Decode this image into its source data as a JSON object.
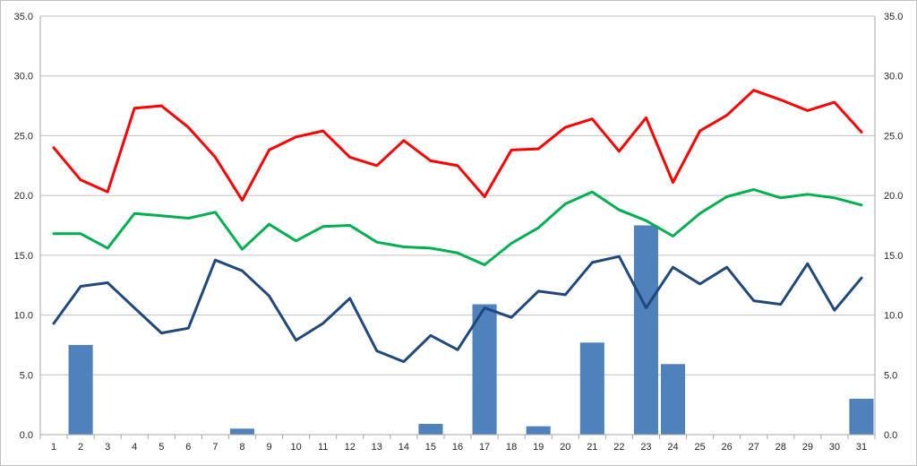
{
  "chart_data": {
    "type": "bar+line",
    "grid": true,
    "legend": "none",
    "x": [
      1,
      2,
      3,
      4,
      5,
      6,
      7,
      8,
      9,
      10,
      11,
      12,
      13,
      14,
      15,
      16,
      17,
      18,
      19,
      20,
      21,
      22,
      23,
      24,
      25,
      26,
      27,
      28,
      29,
      30,
      31
    ],
    "y_ticks": [
      "0.0",
      "5.0",
      "10.0",
      "15.0",
      "20.0",
      "25.0",
      "30.0",
      "35.0"
    ],
    "ylim": [
      0,
      35
    ],
    "bars": {
      "color": "#4f81bd",
      "values": [
        0,
        7.5,
        0,
        0,
        0,
        0,
        0,
        0.5,
        0,
        0,
        0,
        0,
        0,
        0,
        0.9,
        0,
        10.9,
        0,
        0.7,
        0,
        7.7,
        0,
        17.5,
        5.9,
        0,
        0,
        0,
        0,
        0,
        0,
        3.0
      ]
    },
    "series": [
      {
        "color": "#ff0000",
        "values": [
          24.0,
          21.3,
          20.3,
          27.3,
          27.5,
          25.7,
          23.2,
          19.6,
          23.8,
          24.9,
          25.4,
          23.2,
          22.5,
          24.6,
          22.9,
          22.5,
          19.9,
          23.8,
          23.9,
          25.7,
          26.4,
          23.7,
          26.5,
          21.1,
          25.4,
          26.7,
          28.8,
          28.0,
          27.1,
          27.8,
          25.3
        ]
      },
      {
        "color": "#00b050",
        "values": [
          16.8,
          16.8,
          15.6,
          18.5,
          18.3,
          18.1,
          18.6,
          15.5,
          17.6,
          16.2,
          17.4,
          17.5,
          16.1,
          15.7,
          15.6,
          15.2,
          14.2,
          16.0,
          17.3,
          19.3,
          20.3,
          18.8,
          17.9,
          16.6,
          18.5,
          19.9,
          20.5,
          19.8,
          20.1,
          19.8,
          19.2
        ]
      },
      {
        "color": "#1f497d",
        "values": [
          9.3,
          12.4,
          12.7,
          10.6,
          8.5,
          8.9,
          14.6,
          13.7,
          11.6,
          7.9,
          9.3,
          11.4,
          7.0,
          6.1,
          8.3,
          7.1,
          10.6,
          9.8,
          12.0,
          11.7,
          14.4,
          14.9,
          10.6,
          14.0,
          12.6,
          14.0,
          11.2,
          10.9,
          14.3,
          10.4,
          13.1
        ]
      }
    ]
  }
}
